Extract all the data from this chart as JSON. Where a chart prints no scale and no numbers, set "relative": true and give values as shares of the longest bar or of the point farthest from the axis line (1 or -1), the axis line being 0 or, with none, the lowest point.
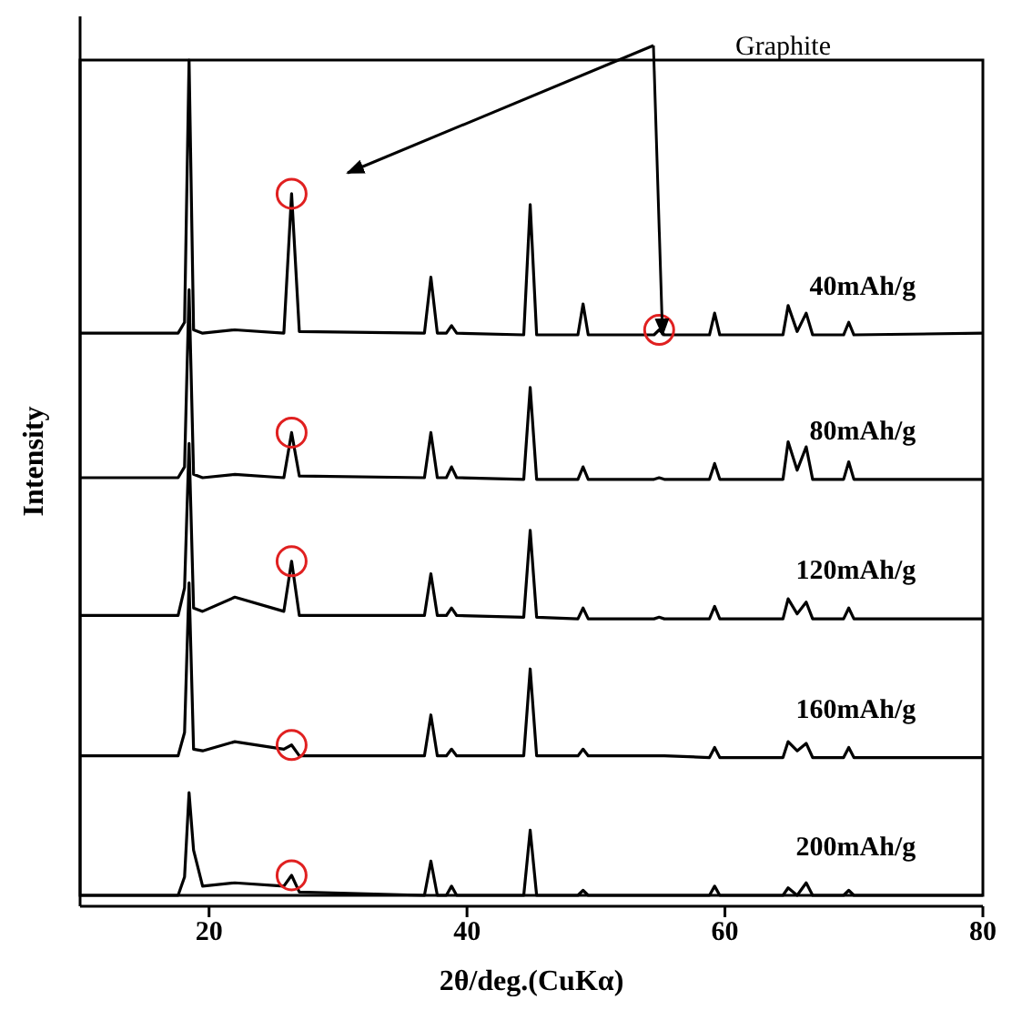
{
  "chart_data": {
    "type": "line",
    "relative": true,
    "xlabel": "2θ/deg.(CuKα)",
    "ylabel": "Intensity",
    "xlim": [
      10,
      80
    ],
    "xticks": [
      20,
      40,
      60,
      80
    ],
    "annotations": [
      "Graphite"
    ],
    "x": [
      10,
      17.6,
      18.1,
      18.45,
      18.8,
      19.5,
      22,
      25.8,
      26.4,
      27.0,
      36.7,
      37.2,
      37.7,
      38.4,
      38.8,
      39.2,
      44.4,
      44.9,
      45.4,
      48.6,
      49.0,
      49.4,
      54.5,
      54.9,
      55.3,
      58.8,
      59.2,
      59.6,
      64.5,
      64.9,
      65.6,
      66.3,
      66.8,
      69.2,
      69.6,
      70.0,
      80
    ],
    "series": [
      {
        "name": "40mAh/g",
        "color": "#000000",
        "values": [
          0.673,
          0.673,
          0.686,
          1,
          0.677,
          0.673,
          0.677,
          0.673,
          0.84,
          0.675,
          0.673,
          0.74,
          0.673,
          0.673,
          0.682,
          0.673,
          0.671,
          0.827,
          0.671,
          0.671,
          0.708,
          0.671,
          0.671,
          0.677,
          0.671,
          0.671,
          0.697,
          0.671,
          0.671,
          0.706,
          0.675,
          0.697,
          0.671,
          0.671,
          0.686,
          0.671,
          0.673
        ]
      },
      {
        "name": "80mAh/g",
        "color": "#000000",
        "values": [
          0.5,
          0.5,
          0.513,
          0.725,
          0.504,
          0.5,
          0.504,
          0.5,
          0.554,
          0.502,
          0.5,
          0.554,
          0.5,
          0.5,
          0.513,
          0.5,
          0.498,
          0.608,
          0.498,
          0.498,
          0.513,
          0.498,
          0.498,
          0.5,
          0.498,
          0.498,
          0.517,
          0.498,
          0.498,
          0.543,
          0.509,
          0.537,
          0.498,
          0.498,
          0.519,
          0.498,
          0.498
        ]
      },
      {
        "name": "120mAh/g",
        "color": "#000000",
        "values": [
          0.335,
          0.335,
          0.368,
          0.541,
          0.344,
          0.34,
          0.357,
          0.34,
          0.4,
          0.335,
          0.335,
          0.385,
          0.335,
          0.335,
          0.344,
          0.335,
          0.333,
          0.437,
          0.333,
          0.331,
          0.344,
          0.331,
          0.331,
          0.333,
          0.331,
          0.331,
          0.346,
          0.331,
          0.331,
          0.355,
          0.337,
          0.351,
          0.331,
          0.331,
          0.344,
          0.331,
          0.331
        ]
      },
      {
        "name": "160mAh/g",
        "color": "#000000",
        "values": [
          0.167,
          0.167,
          0.195,
          0.374,
          0.175,
          0.173,
          0.184,
          0.175,
          0.18,
          0.167,
          0.167,
          0.216,
          0.167,
          0.167,
          0.175,
          0.167,
          0.167,
          0.271,
          0.167,
          0.167,
          0.175,
          0.167,
          0.167,
          0.167,
          0.167,
          0.165,
          0.177,
          0.165,
          0.165,
          0.184,
          0.173,
          0.182,
          0.165,
          0.165,
          0.177,
          0.165,
          0.165
        ]
      },
      {
        "name": "200mAh/g",
        "color": "#000000",
        "values": [
          0,
          0,
          0.022,
          0.123,
          0.054,
          0.011,
          0.015,
          0.011,
          0.024,
          0.004,
          0,
          0.041,
          0,
          0,
          0.011,
          0,
          0,
          0.078,
          0,
          0,
          0.006,
          0,
          0,
          0,
          0,
          0,
          0.011,
          0,
          0,
          0.009,
          0,
          0.015,
          0,
          0,
          0.006,
          0,
          0
        ]
      }
    ]
  }
}
